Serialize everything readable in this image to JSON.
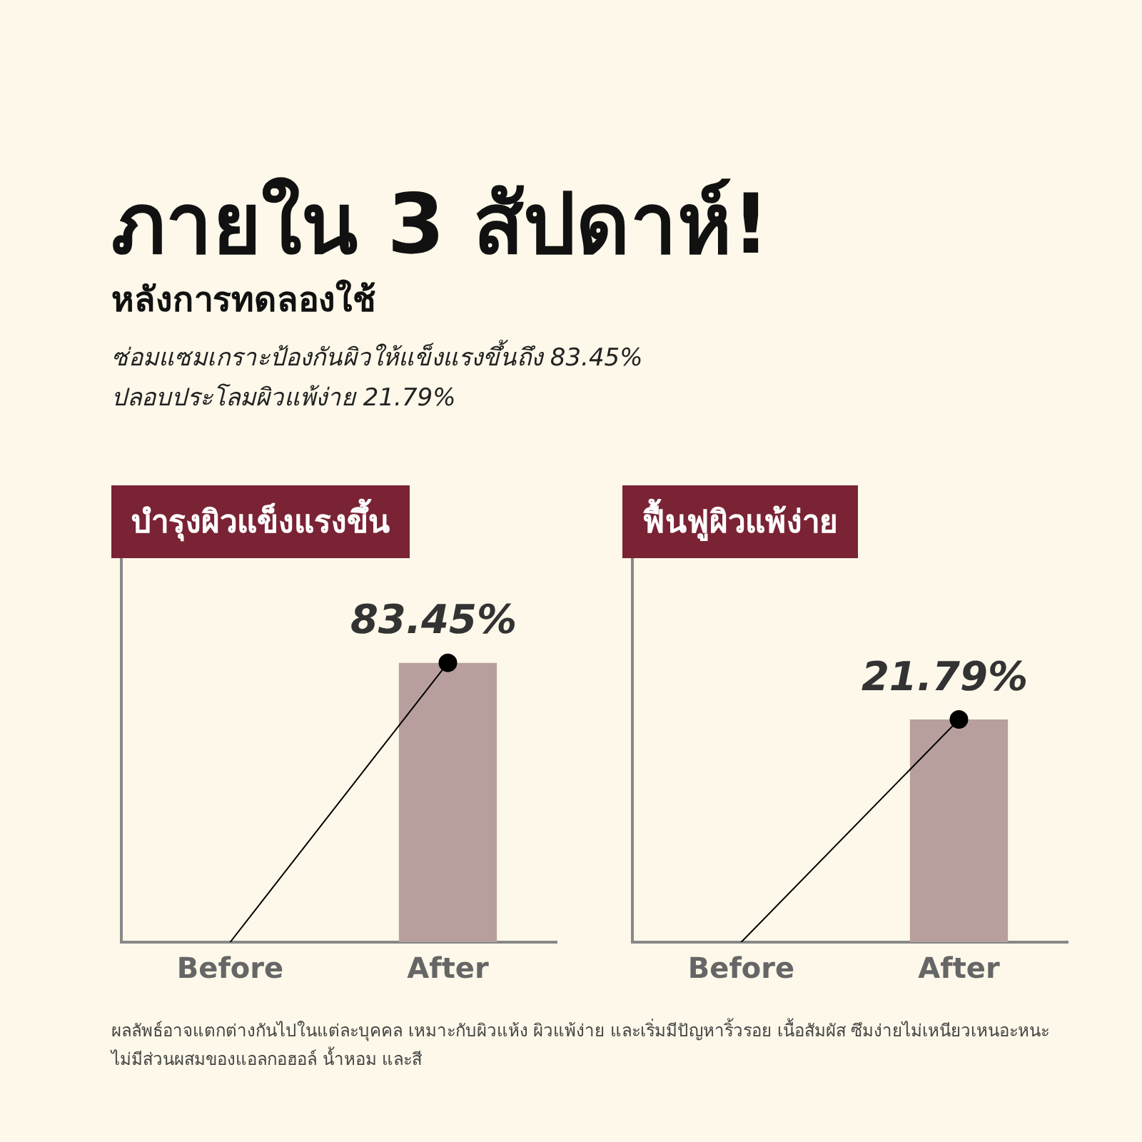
{
  "chart_data": [
    {
      "type": "other",
      "title": "ภายใน 3 สัปดาห์!",
      "subtitle": "หลังการทดลองใช้",
      "annotations": [
        "ซ่อมแซมเกราะป้องกันผิวให้แข็งแรงขึ้นถึง 83.45%",
        "ปลอบประโลมผิวแพ้ง่าย 21.79%",
        "ผลลัพธ์อาจแตกต่างกันไปในแต่ละบุคคล เหมาะกับผิวแห้ง ผิวแพ้ง่าย และเริ่มมีปัญหาริ้วรอย เนื้อสัมผัส ซึมง่ายไม่เหนียวเหนอะหนะ ไม่มีส่วนผสมของแอลกอฮอล์ น้ำหอม และสี"
      ]
    },
    {
      "type": "bar",
      "title": "บำรุงผิวแข็งแรงขึ้น",
      "categories": [
        "Before",
        "After"
      ],
      "ylim": [
        0,
        116
      ],
      "tick_labels": "x",
      "grid": false,
      "legend": false,
      "series": [
        {
          "type": "bar",
          "color": "#b89f9e",
          "values": [
            0,
            83.45
          ]
        },
        {
          "type": "line",
          "color": "#000000",
          "marker": "circle",
          "values": [
            0,
            83.45
          ],
          "value_labels": [
            null,
            "83.45%"
          ]
        }
      ]
    },
    {
      "type": "bar",
      "title": "ฟื้นฟูผิวแพ้ง่าย",
      "categories": [
        "Before",
        "After"
      ],
      "ylim": [
        0,
        38
      ],
      "tick_labels": "x",
      "grid": false,
      "legend": false,
      "series": [
        {
          "type": "bar",
          "color": "#b89f9e",
          "values": [
            0,
            21.79
          ]
        },
        {
          "type": "line",
          "color": "#000000",
          "marker": "circle",
          "values": [
            0,
            21.79
          ],
          "value_labels": [
            null,
            "21.79%"
          ]
        }
      ]
    }
  ]
}
